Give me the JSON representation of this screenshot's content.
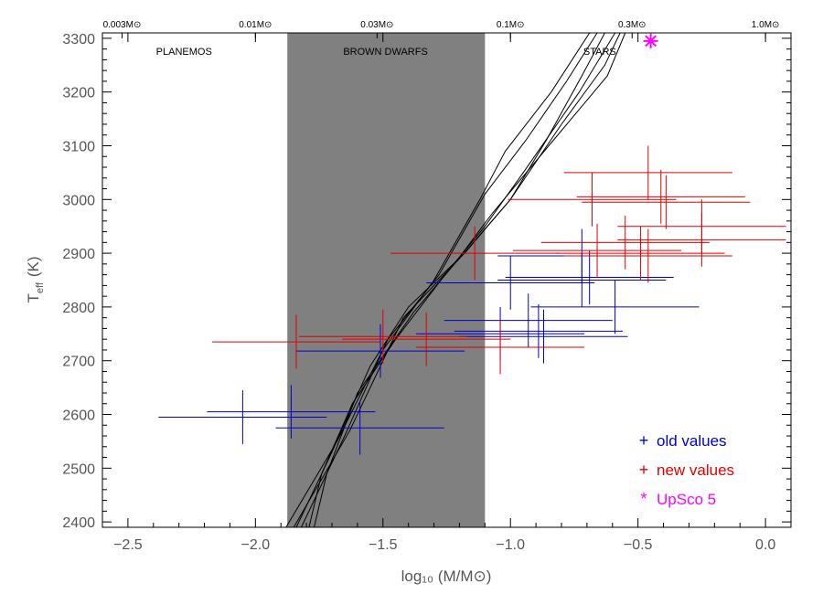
{
  "chart_data": {
    "type": "scatter",
    "xlabel": "log₁₀ (M/M⊙)",
    "ylabel": "T",
    "ylabel_sub": "eff",
    "ylabel_unit": "(K)",
    "xlim": [
      -2.6,
      0.1
    ],
    "ylim": [
      2390,
      3310
    ],
    "x_ticks": [
      -2.5,
      -2.0,
      -1.5,
      -1.0,
      -0.5,
      0.0
    ],
    "x_tick_labels": [
      "−2.5",
      "−2.0",
      "−1.5",
      "−1.0",
      "−0.5",
      "0.0"
    ],
    "y_ticks": [
      2400,
      2500,
      2600,
      2700,
      2800,
      2900,
      3000,
      3100,
      3200,
      3300
    ],
    "y_tick_labels": [
      "2400",
      "2500",
      "2600",
      "2700",
      "2800",
      "2900",
      "3000",
      "3100",
      "3200",
      "3300"
    ],
    "top_axis_ticks": [
      {
        "value": -2.523,
        "label": "0.003M⊙"
      },
      {
        "value": -2.0,
        "label": "0.01M⊙"
      },
      {
        "value": -1.523,
        "label": "0.03M⊙"
      },
      {
        "value": -1.0,
        "label": "0.1M⊙"
      },
      {
        "value": -0.523,
        "label": "0.3M⊙"
      },
      {
        "value": 0.0,
        "label": "1.0M⊙"
      }
    ],
    "shaded_region": {
      "x": [
        -1.875,
        -1.1
      ],
      "color": "#808080"
    },
    "regions": [
      {
        "label": "PLANEMOS",
        "x": -2.28
      },
      {
        "label": "BROWN DWARFS",
        "x": -1.49
      },
      {
        "label": "STARS",
        "x": -0.65
      }
    ],
    "legend_position": "bottom-right",
    "series": [
      {
        "name": "old values",
        "marker": "+",
        "color": "#0000cc",
        "points": [
          {
            "x": -2.05,
            "y": 2595,
            "xerr": 0.33,
            "yerr": 50
          },
          {
            "x": -1.86,
            "y": 2605,
            "xerr": 0.33,
            "yerr": 50
          },
          {
            "x": -1.59,
            "y": 2575,
            "xerr": 0.33,
            "yerr": 50
          },
          {
            "x": -1.51,
            "y": 2718,
            "xerr": 0.33,
            "yerr": 50
          },
          {
            "x": -1.04,
            "y": 2750,
            "xerr": 0.33,
            "yerr": 50
          },
          {
            "x": -0.93,
            "y": 2775,
            "xerr": 0.33,
            "yerr": 50
          },
          {
            "x": -0.89,
            "y": 2755,
            "xerr": 0.33,
            "yerr": 50
          },
          {
            "x": -0.87,
            "y": 2745,
            "xerr": 0.33,
            "yerr": 50
          },
          {
            "x": -1.0,
            "y": 2845,
            "xerr": 0.33,
            "yerr": 50
          },
          {
            "x": -0.72,
            "y": 2850,
            "xerr": 0.33,
            "yerr": 50
          },
          {
            "x": -0.69,
            "y": 2855,
            "xerr": 0.33,
            "yerr": 50
          },
          {
            "x": -0.59,
            "y": 2800,
            "xerr": 0.33,
            "yerr": 50
          },
          {
            "x": -0.72,
            "y": 2895,
            "xerr": 0.33,
            "yerr": 50
          }
        ]
      },
      {
        "name": "new values",
        "marker": "+",
        "color": "#e00000",
        "points": [
          {
            "x": -1.84,
            "y": 2735,
            "xerr": 0.33,
            "yerr": 50
          },
          {
            "x": -1.5,
            "y": 2745,
            "xerr": 0.33,
            "yerr": 50
          },
          {
            "x": -1.33,
            "y": 2740,
            "xerr": 0.33,
            "yerr": 50
          },
          {
            "x": -1.14,
            "y": 2900,
            "xerr": 0.33,
            "yerr": 50
          },
          {
            "x": -1.04,
            "y": 2725,
            "xerr": 0.33,
            "yerr": 50
          },
          {
            "x": -0.68,
            "y": 3000,
            "xerr": 0.33,
            "yerr": 50
          },
          {
            "x": -0.41,
            "y": 3005,
            "xerr": 0.33,
            "yerr": 50
          },
          {
            "x": -0.39,
            "y": 2995,
            "xerr": 0.33,
            "yerr": 50
          },
          {
            "x": -0.46,
            "y": 3050,
            "xerr": 0.33,
            "yerr": 50
          },
          {
            "x": -0.25,
            "y": 2950,
            "xerr": 0.33,
            "yerr": 50
          },
          {
            "x": -0.25,
            "y": 2925,
            "xerr": 0.33,
            "yerr": 50
          },
          {
            "x": -0.55,
            "y": 2920,
            "xerr": 0.33,
            "yerr": 50
          },
          {
            "x": -0.66,
            "y": 2905,
            "xerr": 0.33,
            "yerr": 50
          },
          {
            "x": -0.49,
            "y": 2900,
            "xerr": 0.33,
            "yerr": 50
          },
          {
            "x": -0.46,
            "y": 2895,
            "xerr": 0.33,
            "yerr": 50
          }
        ]
      },
      {
        "name": "UpSco 5",
        "marker": "*",
        "color": "#ff00ff",
        "points": [
          {
            "x": -0.45,
            "y": 3295
          }
        ]
      }
    ],
    "model_tracks": [
      [
        [
          -1.77,
          2390
        ],
        [
          -1.72,
          2490
        ],
        [
          -1.6,
          2640
        ],
        [
          -1.38,
          2790
        ],
        [
          -1.22,
          2880
        ],
        [
          -1.07,
          2975
        ],
        [
          -0.85,
          3100
        ],
        [
          -0.62,
          3230
        ],
        [
          -0.55,
          3310
        ]
      ],
      [
        [
          -1.79,
          2390
        ],
        [
          -1.74,
          2490
        ],
        [
          -1.62,
          2620
        ],
        [
          -1.45,
          2740
        ],
        [
          -1.24,
          2870
        ],
        [
          -1.1,
          2950
        ],
        [
          -0.95,
          3050
        ],
        [
          -0.73,
          3200
        ],
        [
          -0.59,
          3310
        ]
      ],
      [
        [
          -1.84,
          2390
        ],
        [
          -1.7,
          2530
        ],
        [
          -1.55,
          2690
        ],
        [
          -1.4,
          2800
        ],
        [
          -1.18,
          2900
        ],
        [
          -1.0,
          3000
        ],
        [
          -0.8,
          3140
        ],
        [
          -0.63,
          3250
        ],
        [
          -0.57,
          3310
        ]
      ],
      [
        [
          -1.82,
          2390
        ],
        [
          -1.65,
          2560
        ],
        [
          -1.5,
          2720
        ],
        [
          -1.3,
          2850
        ],
        [
          -1.12,
          3000
        ],
        [
          -1.02,
          3090
        ],
        [
          -0.84,
          3200
        ],
        [
          -0.69,
          3310
        ]
      ],
      [
        [
          -1.88,
          2390
        ],
        [
          -1.68,
          2550
        ],
        [
          -1.48,
          2740
        ],
        [
          -1.28,
          2860
        ],
        [
          -1.1,
          3010
        ],
        [
          -0.94,
          3110
        ],
        [
          -0.78,
          3220
        ],
        [
          -0.66,
          3310
        ]
      ],
      [
        [
          -1.85,
          2390
        ],
        [
          -1.63,
          2570
        ],
        [
          -1.42,
          2780
        ],
        [
          -1.2,
          2890
        ],
        [
          -1.0,
          3000
        ],
        [
          -0.86,
          3110
        ],
        [
          -0.72,
          3230
        ],
        [
          -0.63,
          3310
        ]
      ]
    ]
  }
}
